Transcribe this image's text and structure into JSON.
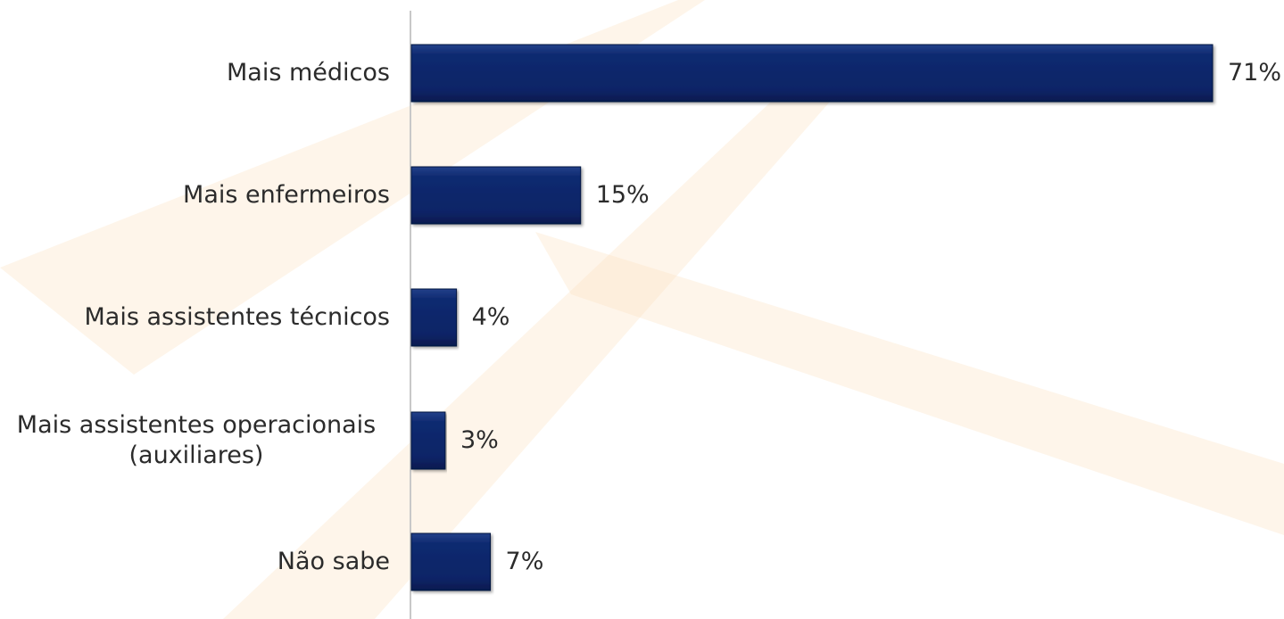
{
  "chart_data": {
    "type": "bar",
    "orientation": "horizontal",
    "categories": [
      "Mais médicos",
      "Mais enfermeiros",
      "Mais assistentes técnicos",
      "Mais assistentes operacionais\n(auxiliares)",
      "Não sabe"
    ],
    "values": [
      71,
      15,
      4,
      3,
      7
    ],
    "value_labels": [
      "71%",
      "15%",
      "4%",
      "3%",
      "7%"
    ],
    "unit": "%",
    "xlim": [
      0,
      71
    ],
    "grid": false,
    "legend": "none",
    "colors": {
      "bar": "#0b2466",
      "bar_edge": "#061640",
      "axis": "#c8c8c8",
      "watermark": "#fbe3c2"
    }
  }
}
